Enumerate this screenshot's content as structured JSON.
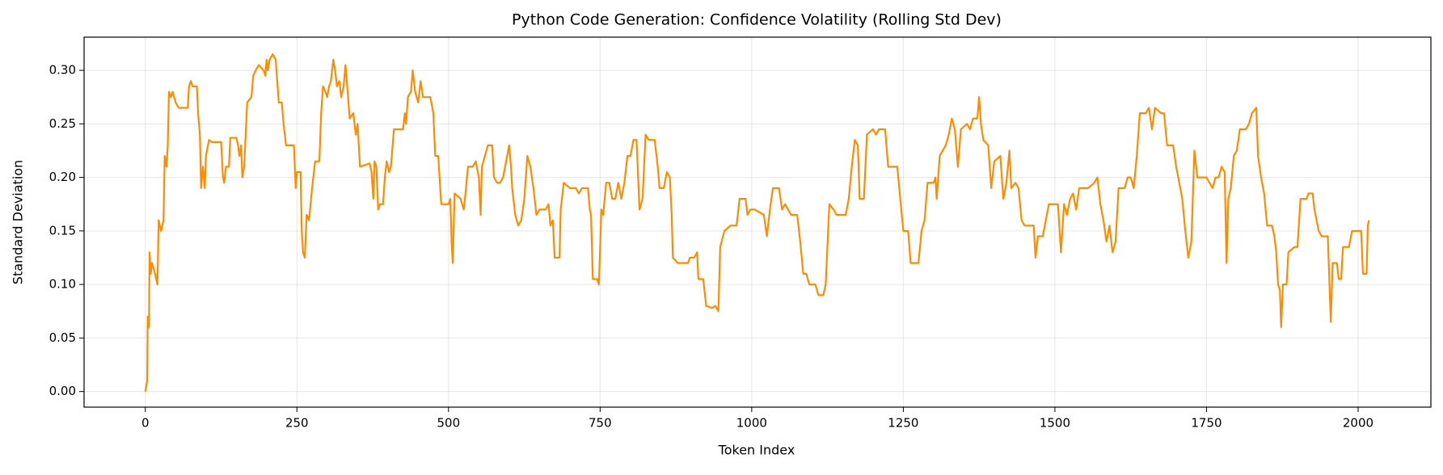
{
  "chart_data": {
    "type": "line",
    "title": "Python Code Generation: Confidence Volatility (Rolling Std Dev)",
    "x_label": "Token Index",
    "y_label": "Standard Deviation",
    "color": "#ff8c00",
    "grid": true,
    "xlim": [
      -101,
      2120
    ],
    "ylim": [
      -0.0146,
      0.331
    ],
    "xticks": [
      0,
      250,
      500,
      750,
      1000,
      1250,
      1500,
      1750,
      2000
    ],
    "yticks": [
      {
        "value": 0,
        "label": "0.00"
      },
      {
        "value": 0.05,
        "label": "0.05"
      },
      {
        "value": 0.1,
        "label": "0.10"
      },
      {
        "value": 0.15,
        "label": "0.15"
      },
      {
        "value": 0.2,
        "label": "0.20"
      },
      {
        "value": 0.25,
        "label": "0.25"
      },
      {
        "value": 0.3,
        "label": "0.30"
      }
    ],
    "x": [
      0,
      3,
      4,
      6,
      7,
      9,
      11,
      16,
      20,
      22,
      26,
      30,
      32,
      35,
      37,
      39,
      42,
      45,
      50,
      55,
      60,
      70,
      72,
      75,
      78,
      85,
      87,
      90,
      92,
      95,
      98,
      100,
      105,
      110,
      125,
      128,
      130,
      133,
      138,
      140,
      150,
      153,
      155,
      158,
      160,
      163,
      168,
      175,
      178,
      182,
      187,
      195,
      198,
      200,
      202,
      205,
      210,
      215,
      220,
      225,
      228,
      232,
      240,
      245,
      248,
      250,
      256,
      258,
      260,
      263,
      266,
      270,
      275,
      280,
      287,
      290,
      293,
      297,
      300,
      303,
      306,
      310,
      313,
      316,
      320,
      323,
      327,
      330,
      333,
      337,
      343,
      347,
      350,
      354,
      370,
      373,
      376,
      378,
      381,
      384,
      387,
      392,
      395,
      398,
      402,
      405,
      410,
      425,
      428,
      430,
      433,
      438,
      441,
      445,
      450,
      454,
      458,
      470,
      475,
      478,
      483,
      488,
      500,
      503,
      505,
      507,
      510,
      520,
      525,
      528,
      532,
      540,
      545,
      550,
      553,
      555,
      565,
      572,
      575,
      580,
      585,
      590,
      595,
      600,
      603,
      605,
      610,
      615,
      620,
      625,
      630,
      635,
      640,
      645,
      650,
      660,
      665,
      668,
      672,
      675,
      683,
      685,
      690,
      700,
      710,
      715,
      720,
      725,
      730,
      733,
      735,
      738,
      745,
      748,
      752,
      755,
      760,
      765,
      770,
      775,
      780,
      785,
      790,
      795,
      800,
      805,
      810,
      815,
      820,
      825,
      830,
      840,
      845,
      848,
      855,
      860,
      865,
      868,
      870,
      878,
      885,
      895,
      898,
      905,
      910,
      912,
      920,
      925,
      935,
      940,
      945,
      948,
      955,
      965,
      975,
      980,
      990,
      993,
      998,
      1005,
      1020,
      1025,
      1030,
      1035,
      1045,
      1050,
      1055,
      1065,
      1075,
      1080,
      1085,
      1090,
      1095,
      1105,
      1110,
      1118,
      1122,
      1128,
      1135,
      1140,
      1155,
      1160,
      1165,
      1170,
      1175,
      1178,
      1185,
      1190,
      1200,
      1205,
      1210,
      1220,
      1225,
      1240,
      1245,
      1250,
      1258,
      1262,
      1275,
      1280,
      1285,
      1290,
      1300,
      1303,
      1305,
      1310,
      1320,
      1325,
      1330,
      1335,
      1340,
      1345,
      1355,
      1360,
      1365,
      1372,
      1375,
      1378,
      1382,
      1390,
      1395,
      1400,
      1410,
      1415,
      1420,
      1425,
      1428,
      1435,
      1440,
      1445,
      1450,
      1465,
      1468,
      1472,
      1480,
      1485,
      1490,
      1505,
      1510,
      1515,
      1520,
      1525,
      1530,
      1535,
      1540,
      1555,
      1565,
      1570,
      1575,
      1580,
      1585,
      1590,
      1595,
      1600,
      1605,
      1615,
      1620,
      1625,
      1630,
      1635,
      1640,
      1650,
      1655,
      1660,
      1665,
      1675,
      1680,
      1685,
      1695,
      1700,
      1705,
      1710,
      1715,
      1720,
      1725,
      1730,
      1735,
      1750,
      1755,
      1760,
      1765,
      1770,
      1775,
      1780,
      1783,
      1786,
      1790,
      1795,
      1800,
      1805,
      1815,
      1820,
      1825,
      1832,
      1835,
      1840,
      1845,
      1850,
      1858,
      1862,
      1865,
      1868,
      1871,
      1873,
      1876,
      1882,
      1885,
      1895,
      1900,
      1905,
      1915,
      1918,
      1925,
      1928,
      1935,
      1940,
      1950,
      1955,
      1958,
      1965,
      1968,
      1972,
      1975,
      1985,
      1990,
      2005,
      2008,
      2014,
      2016,
      2018
    ],
    "values": [
      0.0,
      0.01,
      0.07,
      0.06,
      0.13,
      0.11,
      0.12,
      0.11,
      0.1,
      0.16,
      0.15,
      0.16,
      0.22,
      0.21,
      0.23,
      0.28,
      0.275,
      0.28,
      0.27,
      0.265,
      0.265,
      0.265,
      0.285,
      0.29,
      0.285,
      0.285,
      0.26,
      0.24,
      0.19,
      0.21,
      0.19,
      0.22,
      0.235,
      0.233,
      0.233,
      0.2,
      0.195,
      0.21,
      0.21,
      0.237,
      0.237,
      0.23,
      0.22,
      0.23,
      0.2,
      0.21,
      0.27,
      0.275,
      0.295,
      0.3,
      0.305,
      0.3,
      0.295,
      0.31,
      0.3,
      0.31,
      0.315,
      0.31,
      0.27,
      0.27,
      0.25,
      0.23,
      0.23,
      0.23,
      0.19,
      0.205,
      0.205,
      0.15,
      0.13,
      0.125,
      0.165,
      0.16,
      0.19,
      0.215,
      0.215,
      0.26,
      0.285,
      0.28,
      0.275,
      0.285,
      0.29,
      0.31,
      0.3,
      0.285,
      0.29,
      0.275,
      0.285,
      0.305,
      0.285,
      0.255,
      0.26,
      0.24,
      0.25,
      0.21,
      0.213,
      0.205,
      0.18,
      0.215,
      0.21,
      0.17,
      0.175,
      0.175,
      0.2,
      0.215,
      0.205,
      0.21,
      0.245,
      0.245,
      0.26,
      0.25,
      0.275,
      0.28,
      0.3,
      0.28,
      0.27,
      0.29,
      0.275,
      0.275,
      0.26,
      0.22,
      0.22,
      0.175,
      0.175,
      0.18,
      0.14,
      0.12,
      0.185,
      0.18,
      0.17,
      0.185,
      0.21,
      0.21,
      0.215,
      0.2,
      0.165,
      0.21,
      0.23,
      0.23,
      0.2,
      0.195,
      0.195,
      0.2,
      0.215,
      0.23,
      0.21,
      0.19,
      0.165,
      0.155,
      0.16,
      0.18,
      0.22,
      0.21,
      0.19,
      0.165,
      0.17,
      0.17,
      0.175,
      0.155,
      0.16,
      0.125,
      0.125,
      0.17,
      0.195,
      0.19,
      0.19,
      0.185,
      0.19,
      0.19,
      0.19,
      0.17,
      0.165,
      0.105,
      0.105,
      0.1,
      0.17,
      0.165,
      0.195,
      0.195,
      0.18,
      0.18,
      0.195,
      0.18,
      0.195,
      0.22,
      0.22,
      0.235,
      0.235,
      0.17,
      0.18,
      0.24,
      0.235,
      0.235,
      0.21,
      0.19,
      0.19,
      0.205,
      0.2,
      0.165,
      0.125,
      0.12,
      0.12,
      0.12,
      0.125,
      0.125,
      0.13,
      0.105,
      0.105,
      0.08,
      0.078,
      0.08,
      0.075,
      0.135,
      0.15,
      0.155,
      0.155,
      0.18,
      0.18,
      0.165,
      0.17,
      0.17,
      0.165,
      0.145,
      0.17,
      0.19,
      0.19,
      0.17,
      0.175,
      0.165,
      0.165,
      0.14,
      0.11,
      0.11,
      0.1,
      0.1,
      0.09,
      0.09,
      0.1,
      0.175,
      0.17,
      0.165,
      0.165,
      0.18,
      0.21,
      0.235,
      0.23,
      0.18,
      0.18,
      0.24,
      0.245,
      0.24,
      0.245,
      0.245,
      0.21,
      0.21,
      0.18,
      0.15,
      0.15,
      0.12,
      0.12,
      0.15,
      0.16,
      0.195,
      0.195,
      0.2,
      0.18,
      0.22,
      0.23,
      0.24,
      0.255,
      0.245,
      0.21,
      0.245,
      0.25,
      0.245,
      0.255,
      0.255,
      0.275,
      0.25,
      0.235,
      0.23,
      0.19,
      0.215,
      0.22,
      0.18,
      0.195,
      0.225,
      0.19,
      0.195,
      0.19,
      0.16,
      0.155,
      0.155,
      0.125,
      0.145,
      0.145,
      0.16,
      0.175,
      0.175,
      0.13,
      0.175,
      0.165,
      0.18,
      0.185,
      0.17,
      0.19,
      0.19,
      0.195,
      0.2,
      0.175,
      0.16,
      0.14,
      0.155,
      0.13,
      0.14,
      0.19,
      0.19,
      0.2,
      0.2,
      0.19,
      0.22,
      0.26,
      0.26,
      0.265,
      0.245,
      0.265,
      0.26,
      0.26,
      0.23,
      0.23,
      0.21,
      0.195,
      0.18,
      0.15,
      0.125,
      0.14,
      0.225,
      0.2,
      0.2,
      0.195,
      0.19,
      0.2,
      0.2,
      0.21,
      0.205,
      0.12,
      0.18,
      0.19,
      0.22,
      0.225,
      0.245,
      0.245,
      0.25,
      0.26,
      0.265,
      0.22,
      0.2,
      0.185,
      0.155,
      0.155,
      0.145,
      0.13,
      0.1,
      0.095,
      0.06,
      0.1,
      0.1,
      0.13,
      0.135,
      0.135,
      0.18,
      0.18,
      0.185,
      0.185,
      0.17,
      0.15,
      0.145,
      0.145,
      0.065,
      0.12,
      0.12,
      0.105,
      0.105,
      0.135,
      0.135,
      0.15,
      0.15,
      0.11,
      0.11,
      0.155,
      0.16
    ]
  }
}
